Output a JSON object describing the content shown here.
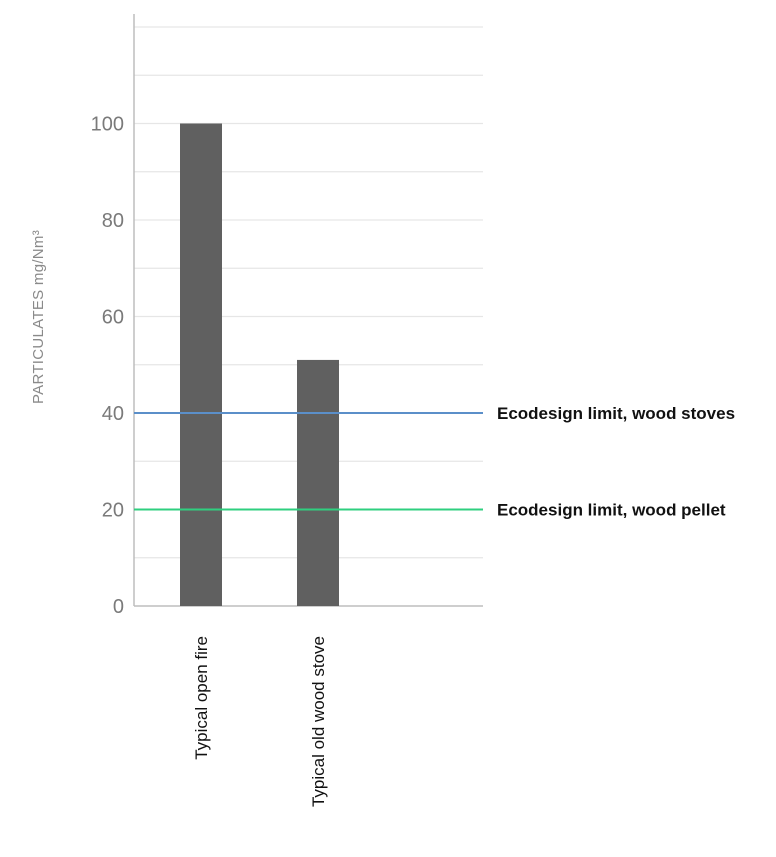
{
  "chart_data": {
    "type": "bar",
    "categories": [
      "Typical open fire",
      "Typical old wood stove"
    ],
    "values": [
      100,
      51
    ],
    "title": "",
    "xlabel": "",
    "ylabel": "PARTICULATES mg/Nm³",
    "ylim": [
      0,
      120
    ],
    "yticks": [
      0,
      20,
      40,
      60,
      80,
      100
    ],
    "grid": true,
    "bar_color": "#606060",
    "reference_lines": [
      {
        "label": "Ecodesign limit, wood stoves",
        "value": 40,
        "color": "#5b8fc9"
      },
      {
        "label": "Ecodesign limit, wood pellet",
        "value": 20,
        "color": "#2fcf7f"
      }
    ]
  }
}
